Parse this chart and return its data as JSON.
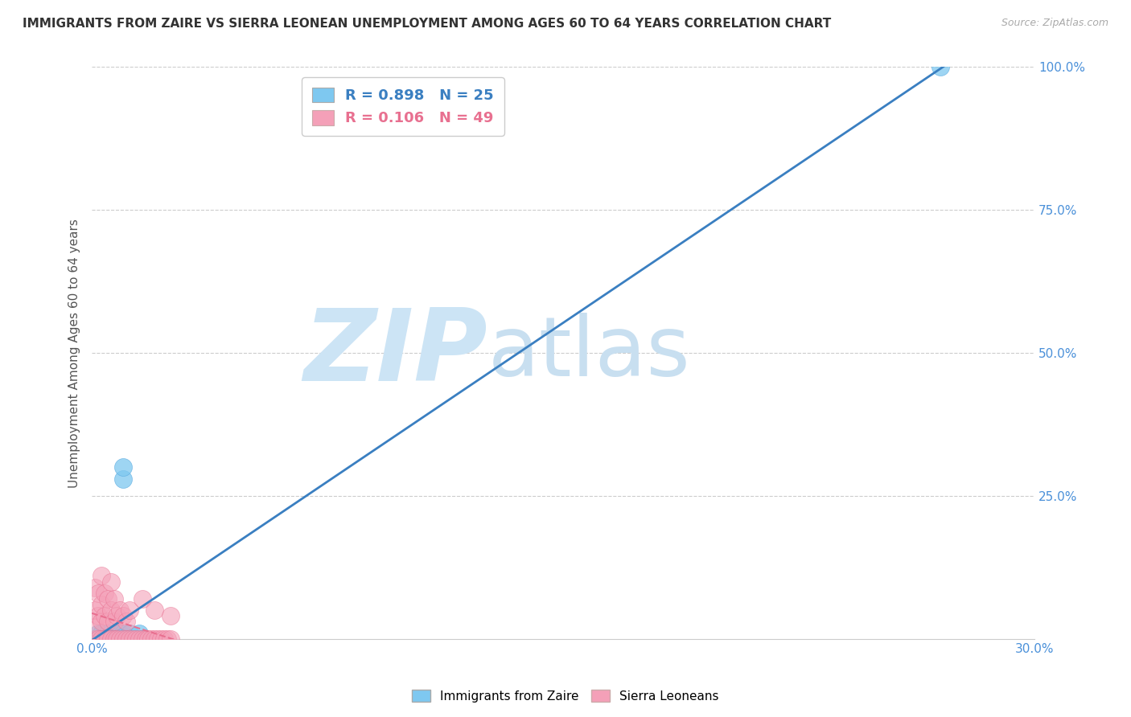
{
  "title": "IMMIGRANTS FROM ZAIRE VS SIERRA LEONEAN UNEMPLOYMENT AMONG AGES 60 TO 64 YEARS CORRELATION CHART",
  "source": "Source: ZipAtlas.com",
  "ylabel": "Unemployment Among Ages 60 to 64 years",
  "xlim": [
    0.0,
    0.3
  ],
  "ylim": [
    0.0,
    1.0
  ],
  "xticks": [
    0.0,
    0.05,
    0.1,
    0.15,
    0.2,
    0.25,
    0.3
  ],
  "xticklabels": [
    "0.0%",
    "",
    "",
    "",
    "",
    "",
    "30.0%"
  ],
  "yticks": [
    0.25,
    0.5,
    0.75,
    1.0
  ],
  "yticklabels": [
    "25.0%",
    "50.0%",
    "75.0%",
    "100.0%"
  ],
  "blue_R": 0.898,
  "blue_N": 25,
  "pink_R": 0.106,
  "pink_N": 49,
  "blue_color": "#7ec8f0",
  "pink_color": "#f4a0b8",
  "blue_edge_color": "#5aaae0",
  "pink_edge_color": "#e87090",
  "blue_line_color": "#3a7fc1",
  "pink_line_color": "#e87090",
  "background_color": "#ffffff",
  "grid_color": "#cccccc",
  "watermark_zip": "ZIP",
  "watermark_atlas": "atlas",
  "watermark_color_zip": "#cce4f5",
  "watermark_color_atlas": "#c8dff0",
  "title_fontsize": 11,
  "axis_label_fontsize": 11,
  "tick_fontsize": 11,
  "blue_x": [
    0.001,
    0.002,
    0.002,
    0.003,
    0.003,
    0.004,
    0.005,
    0.006,
    0.006,
    0.007,
    0.007,
    0.008,
    0.009,
    0.01,
    0.01,
    0.011,
    0.012,
    0.013,
    0.014,
    0.015,
    0.015,
    0.016,
    0.01,
    0.01,
    0.27
  ],
  "blue_y": [
    0.0,
    0.0,
    0.01,
    0.0,
    0.01,
    0.0,
    0.01,
    0.0,
    0.01,
    0.0,
    0.01,
    0.0,
    0.01,
    0.0,
    0.01,
    0.0,
    0.01,
    0.0,
    0.0,
    0.0,
    0.01,
    0.0,
    0.28,
    0.3,
    1.0
  ],
  "pink_x": [
    0.001,
    0.001,
    0.001,
    0.001,
    0.002,
    0.002,
    0.002,
    0.003,
    0.003,
    0.003,
    0.003,
    0.004,
    0.004,
    0.004,
    0.005,
    0.005,
    0.005,
    0.006,
    0.006,
    0.006,
    0.007,
    0.007,
    0.007,
    0.008,
    0.008,
    0.009,
    0.009,
    0.01,
    0.01,
    0.011,
    0.011,
    0.012,
    0.012,
    0.013,
    0.014,
    0.015,
    0.016,
    0.016,
    0.017,
    0.018,
    0.019,
    0.02,
    0.02,
    0.021,
    0.022,
    0.023,
    0.024,
    0.025,
    0.025
  ],
  "pink_y": [
    0.0,
    0.02,
    0.05,
    0.09,
    0.0,
    0.04,
    0.08,
    0.0,
    0.03,
    0.06,
    0.11,
    0.0,
    0.04,
    0.08,
    0.0,
    0.03,
    0.07,
    0.0,
    0.05,
    0.1,
    0.0,
    0.03,
    0.07,
    0.0,
    0.04,
    0.0,
    0.05,
    0.0,
    0.04,
    0.0,
    0.03,
    0.0,
    0.05,
    0.0,
    0.0,
    0.0,
    0.0,
    0.07,
    0.0,
    0.0,
    0.0,
    0.0,
    0.05,
    0.0,
    0.0,
    0.0,
    0.0,
    0.0,
    0.04
  ]
}
